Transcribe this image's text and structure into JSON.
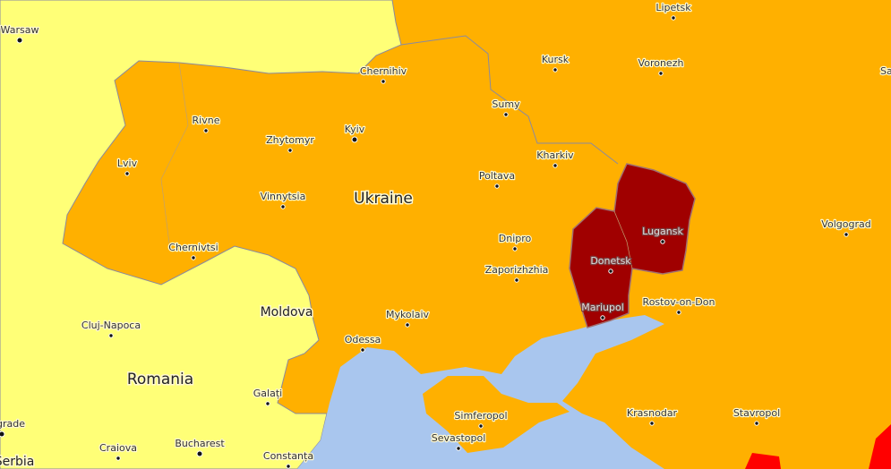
{
  "map": {
    "colors": {
      "low": "#ffff77",
      "medium": "#ffb000",
      "high": "#ff0000",
      "extreme": "#a00000",
      "sea": "#a9c6ee"
    },
    "countries": [
      {
        "name": "Ukraine"
      },
      {
        "name": "Romania"
      },
      {
        "name": "Moldova"
      },
      {
        "name": "Serbia"
      }
    ],
    "cities": [
      {
        "name": "Warsaw",
        "capital": true
      },
      {
        "name": "Lipetsk"
      },
      {
        "name": "Kursk"
      },
      {
        "name": "Voronezh"
      },
      {
        "name": "Chernihiv"
      },
      {
        "name": "Sumy"
      },
      {
        "name": "Rivne"
      },
      {
        "name": "Kyiv",
        "capital": true
      },
      {
        "name": "Zhytomyr"
      },
      {
        "name": "Kharkiv"
      },
      {
        "name": "Lviv"
      },
      {
        "name": "Poltava"
      },
      {
        "name": "Vinnytsia"
      },
      {
        "name": "Volgograd"
      },
      {
        "name": "Luhansk",
        "display": "Lugansk"
      },
      {
        "name": "Dnipro"
      },
      {
        "name": "Chernivtsi"
      },
      {
        "name": "Donetsk"
      },
      {
        "name": "Zaporizhzhia"
      },
      {
        "name": "Rostov-on-Don"
      },
      {
        "name": "Mariupol"
      },
      {
        "name": "Cluj-Napoca"
      },
      {
        "name": "Mykolaiv"
      },
      {
        "name": "Odessa"
      },
      {
        "name": "Galați"
      },
      {
        "name": "Simferopol"
      },
      {
        "name": "Krasnodar"
      },
      {
        "name": "Stavropol"
      },
      {
        "name": "Sevastopol"
      },
      {
        "name": "Belgrade",
        "display": "grade",
        "capital": true
      },
      {
        "name": "Craiova"
      },
      {
        "name": "Bucharest",
        "capital": true
      },
      {
        "name": "Constanța"
      },
      {
        "name": "Saratov",
        "display": "Sa"
      }
    ]
  }
}
